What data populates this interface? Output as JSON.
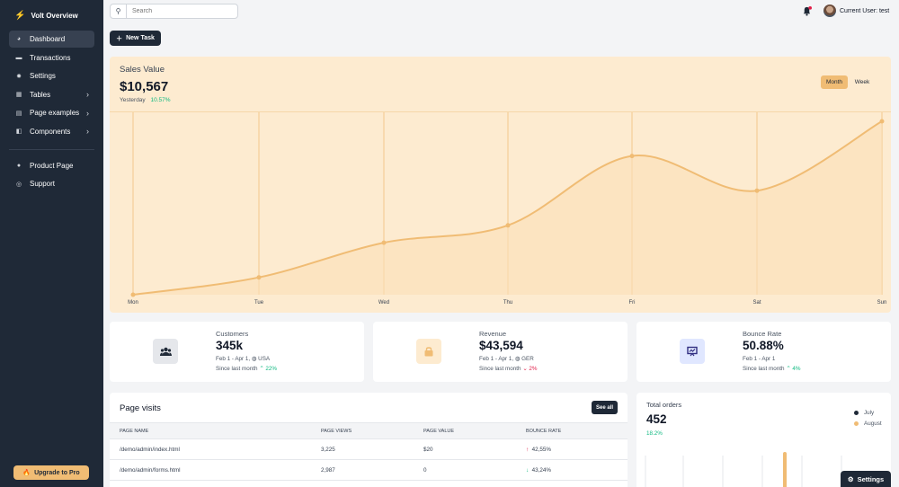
{
  "sidebar": {
    "brand": "Volt Overview",
    "items": [
      {
        "label": "Dashboard",
        "icon": "chart-pie-icon",
        "active": true
      },
      {
        "label": "Transactions",
        "icon": "credit-card-icon"
      },
      {
        "label": "Settings",
        "icon": "gear-icon"
      },
      {
        "label": "Tables",
        "icon": "table-icon",
        "chevron": true
      },
      {
        "label": "Page examples",
        "icon": "pages-icon",
        "chevron": true
      },
      {
        "label": "Components",
        "icon": "layers-icon",
        "chevron": true
      }
    ],
    "secondary": [
      {
        "label": "Product Page",
        "icon": "question-icon"
      },
      {
        "label": "Support",
        "icon": "support-icon"
      }
    ],
    "upgrade_label": "Upgrade to Pro"
  },
  "topbar": {
    "search_placeholder": "Search",
    "user_label": "Current User: test"
  },
  "new_task_label": "New Task",
  "sales": {
    "title": "Sales Value",
    "value": "$10,567",
    "period": "Yesterday",
    "change": "10.57%",
    "toggle_month": "Month",
    "toggle_week": "Week"
  },
  "chart_data": {
    "type": "area",
    "categories": [
      "Mon",
      "Tue",
      "Wed",
      "Thu",
      "Fri",
      "Sat",
      "Sun"
    ],
    "series": [
      {
        "values": [
          0,
          10,
          30,
          40,
          80,
          60,
          100
        ]
      }
    ],
    "ylim": [
      0,
      100
    ],
    "grid": "vertical",
    "color": "#f0bc74"
  },
  "stats": [
    {
      "label": "Customers",
      "value": "345k",
      "range": "Feb 1 - Apr 1,",
      "region": "USA",
      "since": "Since last month",
      "change": "22%",
      "trend": "up",
      "icon": "users-icon",
      "icon_bg": "#e5e7eb",
      "icon_color": "#1f2937"
    },
    {
      "label": "Revenue",
      "value": "$43,594",
      "range": "Feb 1 - Apr 1,",
      "region": "GER",
      "since": "Since last month",
      "change": "2%",
      "trend": "down",
      "icon": "lock-icon",
      "icon_bg": "#fdebd0",
      "icon_color": "#f0bc74"
    },
    {
      "label": "Bounce Rate",
      "value": "50.88%",
      "range": "Feb 1 - Apr 1",
      "region": "",
      "since": "Since last month",
      "change": "4%",
      "trend": "up",
      "icon": "presentation-chart-icon",
      "icon_bg": "#e0e7ff",
      "icon_color": "#312e81"
    }
  ],
  "visits": {
    "title": "Page visits",
    "see_all": "See all",
    "columns": [
      "PAGE NAME",
      "PAGE VIEWS",
      "PAGE VALUE",
      "BOUNCE RATE"
    ],
    "rows": [
      {
        "name": "/demo/admin/index.html",
        "views": "3,225",
        "value": "$20",
        "bounce": "42,55%",
        "trend": "up"
      },
      {
        "name": "/demo/admin/forms.html",
        "views": "2,987",
        "value": "0",
        "bounce": "43,24%",
        "trend": "down"
      }
    ]
  },
  "orders": {
    "label": "Total orders",
    "value": "452",
    "change": "18.2%",
    "legend": [
      {
        "name": "July",
        "color": "#1f2937"
      },
      {
        "name": "August",
        "color": "#f0bc74"
      }
    ]
  },
  "settings_label": "Settings"
}
